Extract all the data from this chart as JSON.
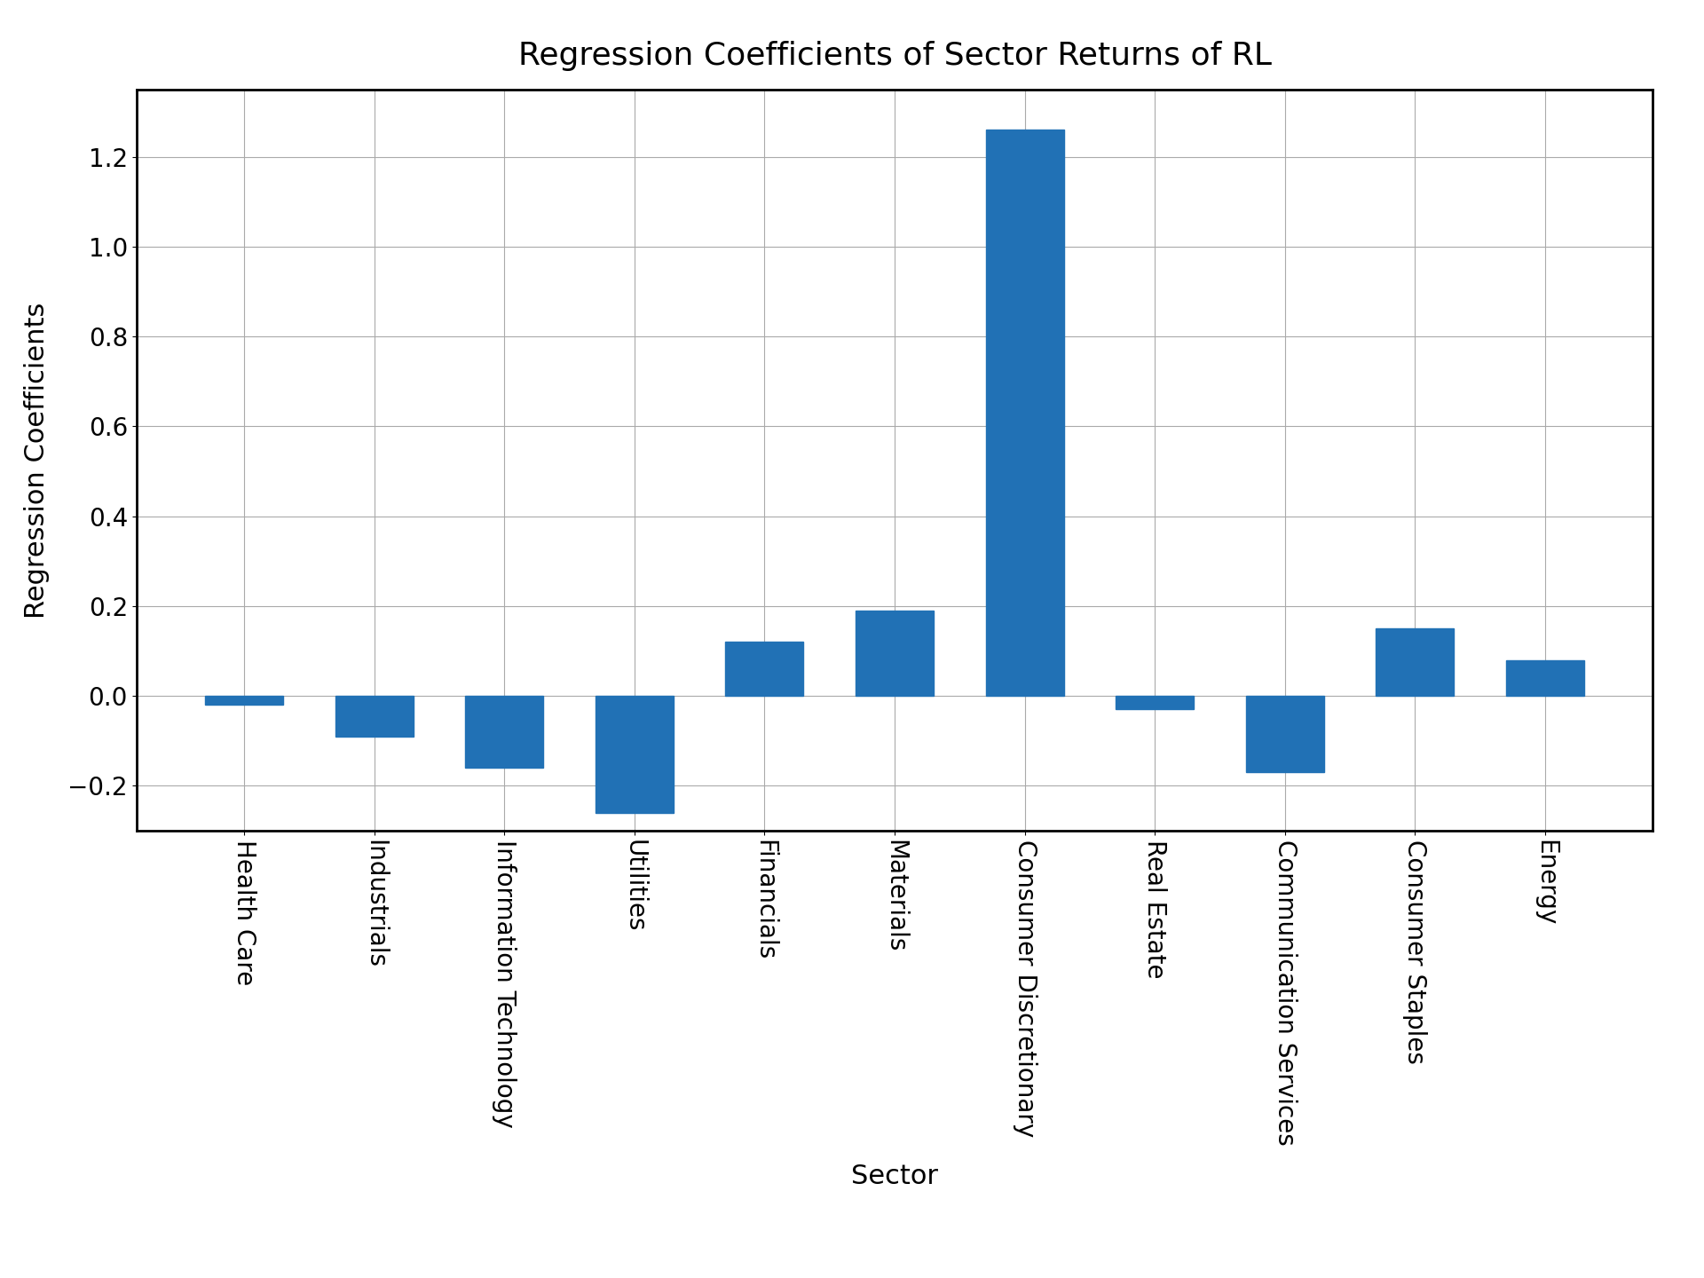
{
  "categories": [
    "Health Care",
    "Industrials",
    "Information Technology",
    "Utilities",
    "Financials",
    "Materials",
    "Consumer Discretionary",
    "Real Estate",
    "Communication Services",
    "Consumer Staples",
    "Energy"
  ],
  "values": [
    -0.02,
    -0.09,
    -0.16,
    -0.26,
    0.12,
    0.19,
    1.26,
    -0.03,
    -0.17,
    0.15,
    0.08
  ],
  "bar_color": "#2171b5",
  "title": "Regression Coefficients of Sector Returns of RL",
  "xlabel": "Sector",
  "ylabel": "Regression Coefficients",
  "ylim": [
    -0.3,
    1.35
  ],
  "title_fontsize": 26,
  "label_fontsize": 22,
  "tick_fontsize": 20,
  "background_color": "#ffffff",
  "grid_color": "#aaaaaa"
}
